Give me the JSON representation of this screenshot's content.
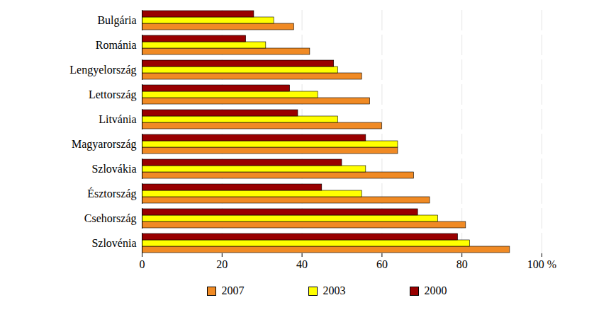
{
  "chart_data": {
    "type": "bar",
    "orientation": "horizontal",
    "categories": [
      "Bulgária",
      "Románia",
      "Lengyelország",
      "Lettország",
      "Litvánia",
      "Magyarország",
      "Szlovákia",
      "Észtország",
      "Csehország",
      "Szlovénia"
    ],
    "series": [
      {
        "name": "2007",
        "color": "#f08a24",
        "values": [
          38,
          42,
          55,
          57,
          60,
          64,
          68,
          72,
          81,
          92
        ]
      },
      {
        "name": "2003",
        "color": "#ffff00",
        "values": [
          33,
          31,
          49,
          44,
          49,
          64,
          56,
          55,
          74,
          82
        ]
      },
      {
        "name": "2000",
        "color": "#990000",
        "values": [
          28,
          26,
          48,
          37,
          39,
          56,
          50,
          45,
          69,
          79
        ]
      }
    ],
    "xlim": [
      0,
      100
    ],
    "xticks": [
      0,
      20,
      40,
      60,
      80,
      {
        "value": 100,
        "label": "100 %"
      }
    ],
    "grid": true,
    "legend": "bottom"
  }
}
